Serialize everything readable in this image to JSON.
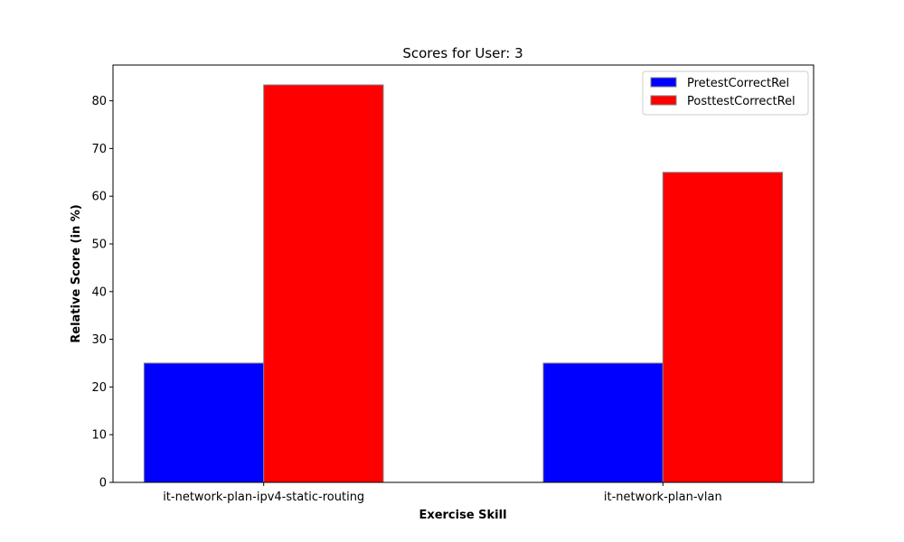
{
  "chart_data": {
    "type": "bar",
    "title": "Scores for User: 3",
    "xlabel": "Exercise Skill",
    "ylabel": "Relative Score (in %)",
    "categories": [
      "it-network-plan-ipv4-static-routing",
      "it-network-plan-vlan"
    ],
    "series": [
      {
        "name": "PretestCorrectRel",
        "values": [
          25,
          25
        ],
        "color": "#0000ff"
      },
      {
        "name": "PosttestCorrectRel",
        "values": [
          83.33,
          65
        ],
        "color": "#ff0000"
      }
    ],
    "ylim": [
      0,
      87.5
    ],
    "yticks": [
      0,
      10,
      20,
      30,
      40,
      50,
      60,
      70,
      80
    ],
    "grid": false,
    "legend_position": "top-right",
    "bar_edge_color": "#808080"
  }
}
